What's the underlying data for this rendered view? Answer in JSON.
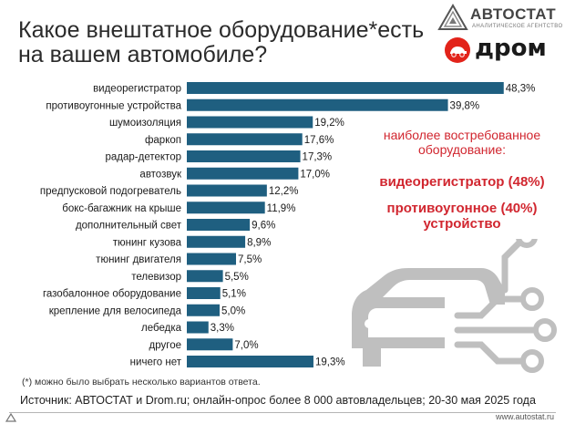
{
  "header": {
    "title_line1": "Какое внештатное оборудование*есть",
    "title_line2": "на вашем автомобиле?"
  },
  "brands": {
    "avtostat_name": "АВТОСТАТ",
    "avtostat_sub": "АНАЛИТИЧЕСКОЕ АГЕНТСТВО",
    "drom_name": "дром",
    "accent": "#e2231a"
  },
  "side_note": {
    "header_line1": "наиболее востребованное",
    "header_line2": "оборудование:",
    "highlight1": "видеорегистратор (48%)",
    "highlight2_line1": "противоугонное (40%)",
    "highlight2_line2": "устройство",
    "color": "#d1262f"
  },
  "footnote": "(*) можно было выбрать несколько вариантов ответа.",
  "source": "Источник: АВТОСТАТ и Drom.ru; онлайн-опрос более 8 000 автовладельцев; 20-30 мая 2025 года",
  "footer_url": "www.autostat.ru",
  "chart_data": {
    "type": "bar",
    "orientation": "horizontal",
    "bar_color": "#1f5f80",
    "xlim": [
      0,
      50
    ],
    "grid": false,
    "categories": [
      "видеорегистратор",
      "противоугонные устройства",
      "шумоизоляция",
      "фаркоп",
      "радар-детектор",
      "автозвук",
      "предпусковой подогреватель",
      "бокс-багажник на крыше",
      "дополнительный свет",
      "тюнинг кузова",
      "тюнинг двигателя",
      "телевизор",
      "газобалонное оборудование",
      "крепление для велосипеда",
      "лебедка",
      "другое",
      "ничего нет"
    ],
    "values": [
      48.3,
      39.8,
      19.2,
      17.6,
      17.3,
      17.0,
      12.2,
      11.9,
      9.6,
      8.9,
      7.5,
      5.5,
      5.1,
      5.0,
      3.3,
      7.0,
      19.3
    ],
    "value_labels": [
      "48,3%",
      "39,8%",
      "19,2%",
      "17,6%",
      "17,3%",
      "17,0%",
      "12,2%",
      "11,9%",
      "9,6%",
      "8,9%",
      "7,5%",
      "5,5%",
      "5,1%",
      "5,0%",
      "3,3%",
      "7,0%",
      "19,3%"
    ]
  }
}
